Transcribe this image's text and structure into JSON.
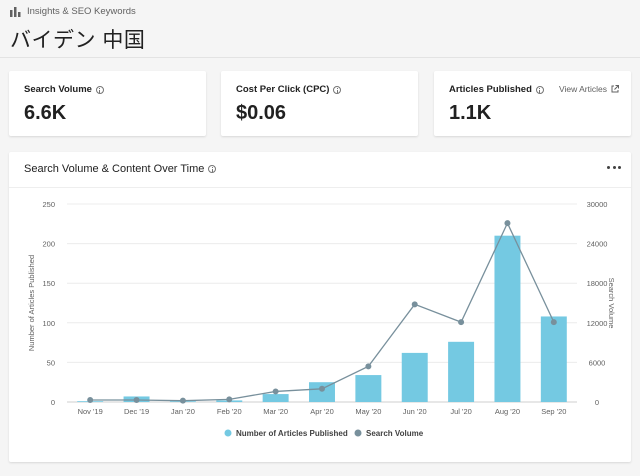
{
  "header": {
    "breadcrumb": "Insights & SEO Keywords",
    "title": "バイデン 中国"
  },
  "kpis": {
    "search_volume": {
      "label": "Search Volume",
      "value": "6.6K"
    },
    "cpc": {
      "label": "Cost Per Click (CPC)",
      "value": "$0.06"
    },
    "articles": {
      "label": "Articles Published",
      "value": "1.1K",
      "link": "View Articles"
    }
  },
  "chart_card": {
    "title": "Search Volume & Content Over Time"
  },
  "chart_data": {
    "type": "bar",
    "categories": [
      "Nov '19",
      "Dec '19",
      "Jan '20",
      "Feb '20",
      "Mar '20",
      "Apr '20",
      "May '20",
      "Jun '20",
      "Jul '20",
      "Aug '20",
      "Sep '20"
    ],
    "series": [
      {
        "name": "Number of Articles Published",
        "type": "bar",
        "axis": "left",
        "values": [
          1,
          7,
          1,
          2,
          10,
          25,
          34,
          62,
          76,
          210,
          108
        ]
      },
      {
        "name": "Search Volume",
        "type": "line",
        "axis": "right",
        "values": [
          300,
          300,
          200,
          400,
          1600,
          2000,
          5400,
          14800,
          12100,
          27100,
          12100
        ]
      }
    ],
    "ylabel": "Number of Articles Published",
    "ylabel_right": "Search Volume",
    "ylim": [
      0,
      250
    ],
    "ylim_right": [
      0,
      30000
    ],
    "yticks": [
      "0",
      "50",
      "100",
      "150",
      "200",
      "250"
    ],
    "yticks_right": [
      "0",
      "6000",
      "12000",
      "18000",
      "24000",
      "30000"
    ],
    "grid": true,
    "legend_position": "bottom",
    "colors": {
      "bar": "#74c9e2",
      "line": "#78909c"
    }
  }
}
